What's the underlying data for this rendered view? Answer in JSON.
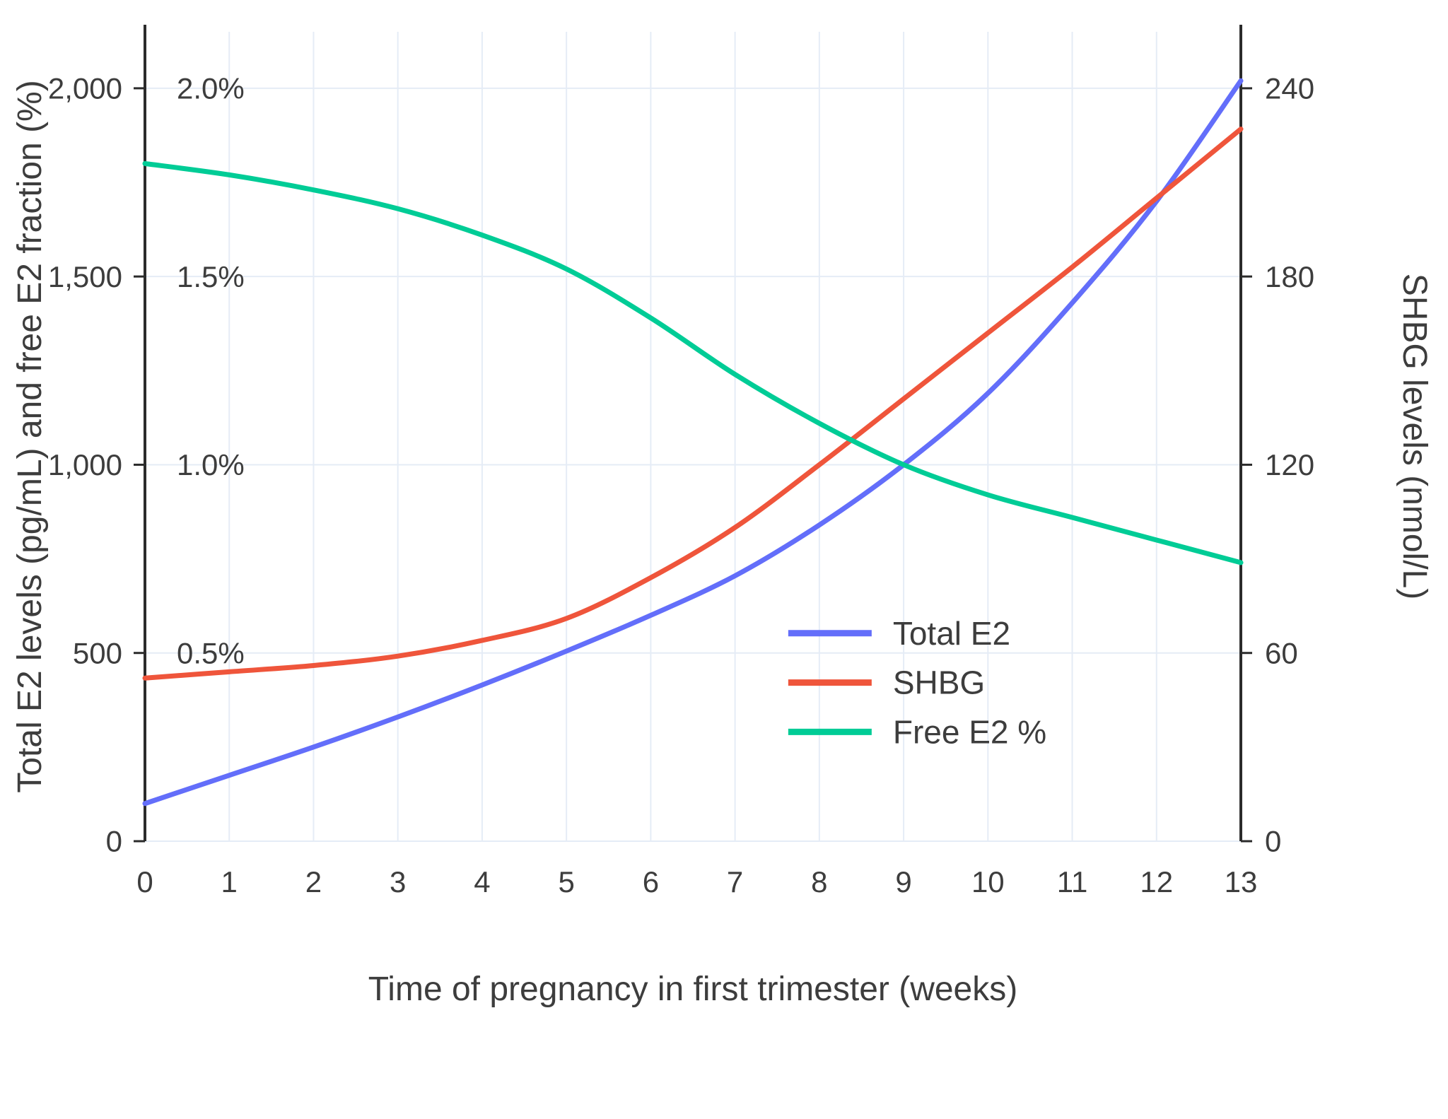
{
  "chart_data": {
    "type": "line",
    "title": "",
    "xlabel": "Time of pregnancy in first trimester (weeks)",
    "ylabel_left": "Total E2 levels (pg/mL) and free E2 fraction (%)",
    "ylabel_right": "SHBG levels (nmol/L)",
    "x": [
      0,
      1,
      2,
      3,
      4,
      5,
      6,
      7,
      8,
      9,
      10,
      11,
      12,
      13
    ],
    "xlim": [
      0,
      13
    ],
    "ylim_left": [
      0,
      2150
    ],
    "ylim_right": [
      0,
      258
    ],
    "grid": true,
    "x_ticks": [
      {
        "v": 0,
        "label": "0"
      },
      {
        "v": 1,
        "label": "1"
      },
      {
        "v": 2,
        "label": "2"
      },
      {
        "v": 3,
        "label": "3"
      },
      {
        "v": 4,
        "label": "4"
      },
      {
        "v": 5,
        "label": "5"
      },
      {
        "v": 6,
        "label": "6"
      },
      {
        "v": 7,
        "label": "7"
      },
      {
        "v": 8,
        "label": "8"
      },
      {
        "v": 9,
        "label": "9"
      },
      {
        "v": 10,
        "label": "10"
      },
      {
        "v": 11,
        "label": "11"
      },
      {
        "v": 12,
        "label": "12"
      },
      {
        "v": 13,
        "label": "13"
      }
    ],
    "y_left_ticks": [
      {
        "v": 0,
        "label": "0"
      },
      {
        "v": 500,
        "label": "500"
      },
      {
        "v": 1000,
        "label": "1,000"
      },
      {
        "v": 1500,
        "label": "1,500"
      },
      {
        "v": 2000,
        "label": "2,000"
      }
    ],
    "y_left_pct_ticks": [
      {
        "v": 500,
        "label": "0.5%"
      },
      {
        "v": 1000,
        "label": "1.0%"
      },
      {
        "v": 1500,
        "label": "1.5%"
      },
      {
        "v": 2000,
        "label": "2.0%"
      }
    ],
    "y_right_ticks": [
      {
        "v": 0,
        "label": "0"
      },
      {
        "v": 60,
        "label": "60"
      },
      {
        "v": 120,
        "label": "120"
      },
      {
        "v": 180,
        "label": "180"
      },
      {
        "v": 240,
        "label": "240"
      }
    ],
    "series": [
      {
        "name": "Total E2",
        "axis": "left",
        "scale": 1,
        "color": "#636EFA",
        "values": [
          100,
          175,
          250,
          330,
          415,
          505,
          600,
          705,
          840,
          1000,
          1190,
          1430,
          1700,
          2020
        ]
      },
      {
        "name": "SHBG",
        "axis": "right",
        "scale": 1,
        "color": "#EF553B",
        "values": [
          52,
          54,
          56,
          59,
          64,
          71,
          84,
          100,
          120,
          141,
          162,
          183,
          205,
          227
        ]
      },
      {
        "name": "Free E2 %",
        "axis": "left",
        "scale": 1000,
        "color": "#00CC96",
        "values": [
          1.8,
          1.77,
          1.73,
          1.68,
          1.61,
          1.52,
          1.39,
          1.24,
          1.11,
          1.0,
          0.92,
          0.86,
          0.8,
          0.74
        ]
      }
    ],
    "legend": {
      "position": "inside-right-lower",
      "items": [
        "Total E2",
        "SHBG",
        "Free E2 %"
      ]
    },
    "colors": {
      "grid": "#e5ecf6",
      "axis": "#2b2b2b",
      "text": "#3d3d3d"
    }
  }
}
